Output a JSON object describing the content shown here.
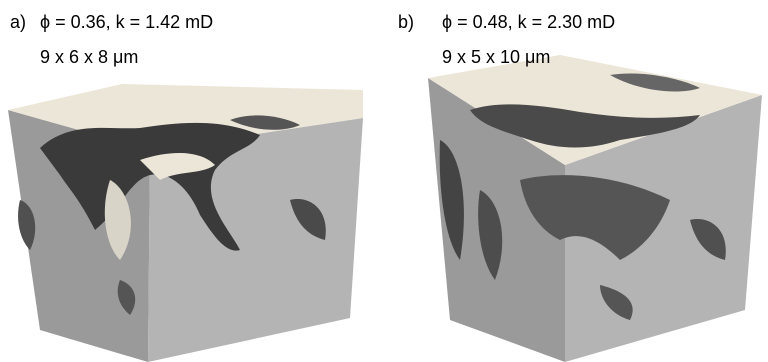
{
  "panels": [
    {
      "label": "a)",
      "properties": "ϕ = 0.36, k = 1.42 mD",
      "size": "9 x 6 x 8 μm"
    },
    {
      "label": "b)",
      "properties": "ϕ = 0.48, k = 2.30 mD",
      "size": "9 x 5 x 10 μm"
    }
  ]
}
